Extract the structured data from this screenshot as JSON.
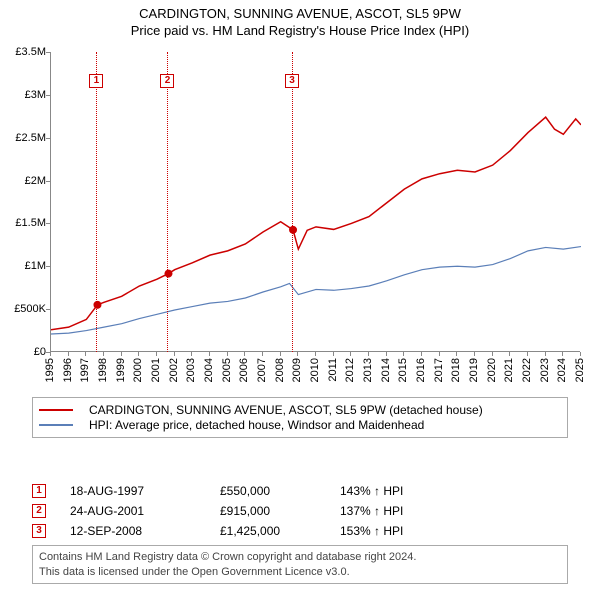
{
  "title": {
    "main": "CARDINGTON, SUNNING AVENUE, ASCOT, SL5 9PW",
    "sub": "Price paid vs. HM Land Registry's House Price Index (HPI)"
  },
  "chart": {
    "type": "line",
    "background_color": "#ffffff",
    "grid_color": "#cccccc",
    "axis_color": "#888888",
    "x": {
      "min": 1995,
      "max": 2025,
      "ticks": [
        1995,
        1996,
        1997,
        1998,
        1999,
        2000,
        2001,
        2002,
        2003,
        2004,
        2005,
        2006,
        2007,
        2008,
        2009,
        2010,
        2011,
        2012,
        2013,
        2014,
        2015,
        2016,
        2017,
        2018,
        2019,
        2020,
        2021,
        2022,
        2023,
        2024,
        2025
      ],
      "tick_fontsize": 11,
      "label_rotation": -90
    },
    "y": {
      "min": 0,
      "max": 3500000,
      "ticks": [
        0,
        500000,
        1000000,
        1500000,
        2000000,
        2500000,
        3000000,
        3500000
      ],
      "tick_labels": [
        "£0",
        "£500K",
        "£1M",
        "£1.5M",
        "£2M",
        "£2.5M",
        "£3M",
        "£3.5M"
      ],
      "tick_fontsize": 11
    },
    "series": [
      {
        "name": "CARDINGTON, SUNNING AVENUE, ASCOT, SL5 9PW (detached house)",
        "color": "#cc0000",
        "line_width": 1.5,
        "points": [
          [
            1995.0,
            260000
          ],
          [
            1996.0,
            290000
          ],
          [
            1997.0,
            380000
          ],
          [
            1997.63,
            550000
          ],
          [
            1998.0,
            580000
          ],
          [
            1999.0,
            650000
          ],
          [
            2000.0,
            770000
          ],
          [
            2001.0,
            850000
          ],
          [
            2001.65,
            915000
          ],
          [
            2002.0,
            960000
          ],
          [
            2003.0,
            1040000
          ],
          [
            2004.0,
            1130000
          ],
          [
            2005.0,
            1180000
          ],
          [
            2006.0,
            1260000
          ],
          [
            2007.0,
            1400000
          ],
          [
            2008.0,
            1520000
          ],
          [
            2008.7,
            1425000
          ],
          [
            2009.0,
            1200000
          ],
          [
            2009.5,
            1420000
          ],
          [
            2010.0,
            1460000
          ],
          [
            2011.0,
            1430000
          ],
          [
            2012.0,
            1500000
          ],
          [
            2013.0,
            1580000
          ],
          [
            2014.0,
            1740000
          ],
          [
            2015.0,
            1900000
          ],
          [
            2016.0,
            2020000
          ],
          [
            2017.0,
            2080000
          ],
          [
            2018.0,
            2120000
          ],
          [
            2019.0,
            2100000
          ],
          [
            2020.0,
            2180000
          ],
          [
            2021.0,
            2350000
          ],
          [
            2022.0,
            2560000
          ],
          [
            2023.0,
            2740000
          ],
          [
            2023.5,
            2600000
          ],
          [
            2024.0,
            2540000
          ],
          [
            2024.7,
            2720000
          ],
          [
            2025.0,
            2650000
          ]
        ],
        "markers": [
          {
            "x": 1997.63,
            "y": 550000
          },
          {
            "x": 2001.65,
            "y": 915000
          },
          {
            "x": 2008.7,
            "y": 1425000
          }
        ]
      },
      {
        "name": "HPI: Average price, detached house, Windsor and Maidenhead",
        "color": "#5b7fb8",
        "line_width": 1.2,
        "points": [
          [
            1995.0,
            210000
          ],
          [
            1996.0,
            220000
          ],
          [
            1997.0,
            250000
          ],
          [
            1998.0,
            290000
          ],
          [
            1999.0,
            330000
          ],
          [
            2000.0,
            390000
          ],
          [
            2001.0,
            440000
          ],
          [
            2002.0,
            490000
          ],
          [
            2003.0,
            530000
          ],
          [
            2004.0,
            570000
          ],
          [
            2005.0,
            590000
          ],
          [
            2006.0,
            630000
          ],
          [
            2007.0,
            700000
          ],
          [
            2008.0,
            760000
          ],
          [
            2008.5,
            800000
          ],
          [
            2009.0,
            670000
          ],
          [
            2010.0,
            730000
          ],
          [
            2011.0,
            720000
          ],
          [
            2012.0,
            740000
          ],
          [
            2013.0,
            770000
          ],
          [
            2014.0,
            830000
          ],
          [
            2015.0,
            900000
          ],
          [
            2016.0,
            960000
          ],
          [
            2017.0,
            990000
          ],
          [
            2018.0,
            1000000
          ],
          [
            2019.0,
            990000
          ],
          [
            2020.0,
            1020000
          ],
          [
            2021.0,
            1090000
          ],
          [
            2022.0,
            1180000
          ],
          [
            2023.0,
            1220000
          ],
          [
            2024.0,
            1200000
          ],
          [
            2025.0,
            1230000
          ]
        ]
      }
    ],
    "event_labels": [
      {
        "n": "1",
        "x": 1997.63
      },
      {
        "n": "2",
        "x": 2001.65
      },
      {
        "n": "3",
        "x": 2008.7
      }
    ]
  },
  "legend": {
    "items": [
      {
        "color": "#cc0000",
        "label": "CARDINGTON, SUNNING AVENUE, ASCOT, SL5 9PW (detached house)"
      },
      {
        "color": "#5b7fb8",
        "label": "HPI: Average price, detached house, Windsor and Maidenhead"
      }
    ]
  },
  "events": [
    {
      "n": "1",
      "date": "18-AUG-1997",
      "price": "£550,000",
      "pct": "143% ↑ HPI"
    },
    {
      "n": "2",
      "date": "24-AUG-2001",
      "price": "£915,000",
      "pct": "137% ↑ HPI"
    },
    {
      "n": "3",
      "date": "12-SEP-2008",
      "price": "£1,425,000",
      "pct": "153% ↑ HPI"
    }
  ],
  "footer": {
    "line1": "Contains HM Land Registry data © Crown copyright and database right 2024.",
    "line2": "This data is licensed under the Open Government Licence v3.0."
  }
}
